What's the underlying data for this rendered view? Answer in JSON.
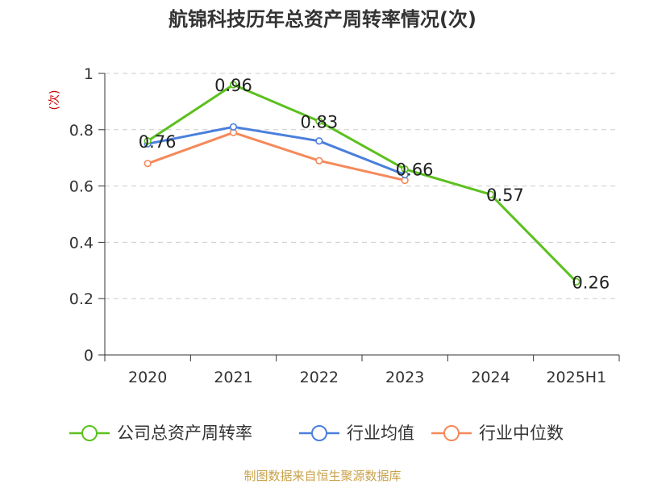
{
  "chart_data": {
    "type": "line",
    "title": "航锦科技历年总资产周转率情况(次)",
    "ylabel": "(次)",
    "categories": [
      "2020",
      "2021",
      "2022",
      "2023",
      "2024",
      "2025H1"
    ],
    "ylim": [
      0,
      1
    ],
    "yticks": [
      "0",
      "0.2",
      "0.4",
      "0.6",
      "0.8",
      "1"
    ],
    "grid": true,
    "legend_position": "bottom",
    "series": [
      {
        "name": "公司总资产周转率",
        "color": "#5cc01f",
        "values": [
          0.76,
          0.96,
          0.83,
          0.66,
          0.57,
          0.26
        ],
        "labels": [
          "0.76",
          "0.96",
          "0.83",
          "0.66",
          "0.57",
          "0.26"
        ]
      },
      {
        "name": "行业均值",
        "color": "#4a7fdc",
        "values": [
          0.75,
          0.81,
          0.76,
          0.64,
          null,
          null
        ]
      },
      {
        "name": "行业中位数",
        "color": "#f5895a",
        "values": [
          0.68,
          0.79,
          0.69,
          0.62,
          null,
          null
        ]
      }
    ]
  },
  "source": "制图数据来自恒生聚源数据库",
  "colors": {
    "ylabel": "#cc0000",
    "source": "#c9a24a",
    "grid": "#cccccc",
    "axis": "#333333"
  }
}
